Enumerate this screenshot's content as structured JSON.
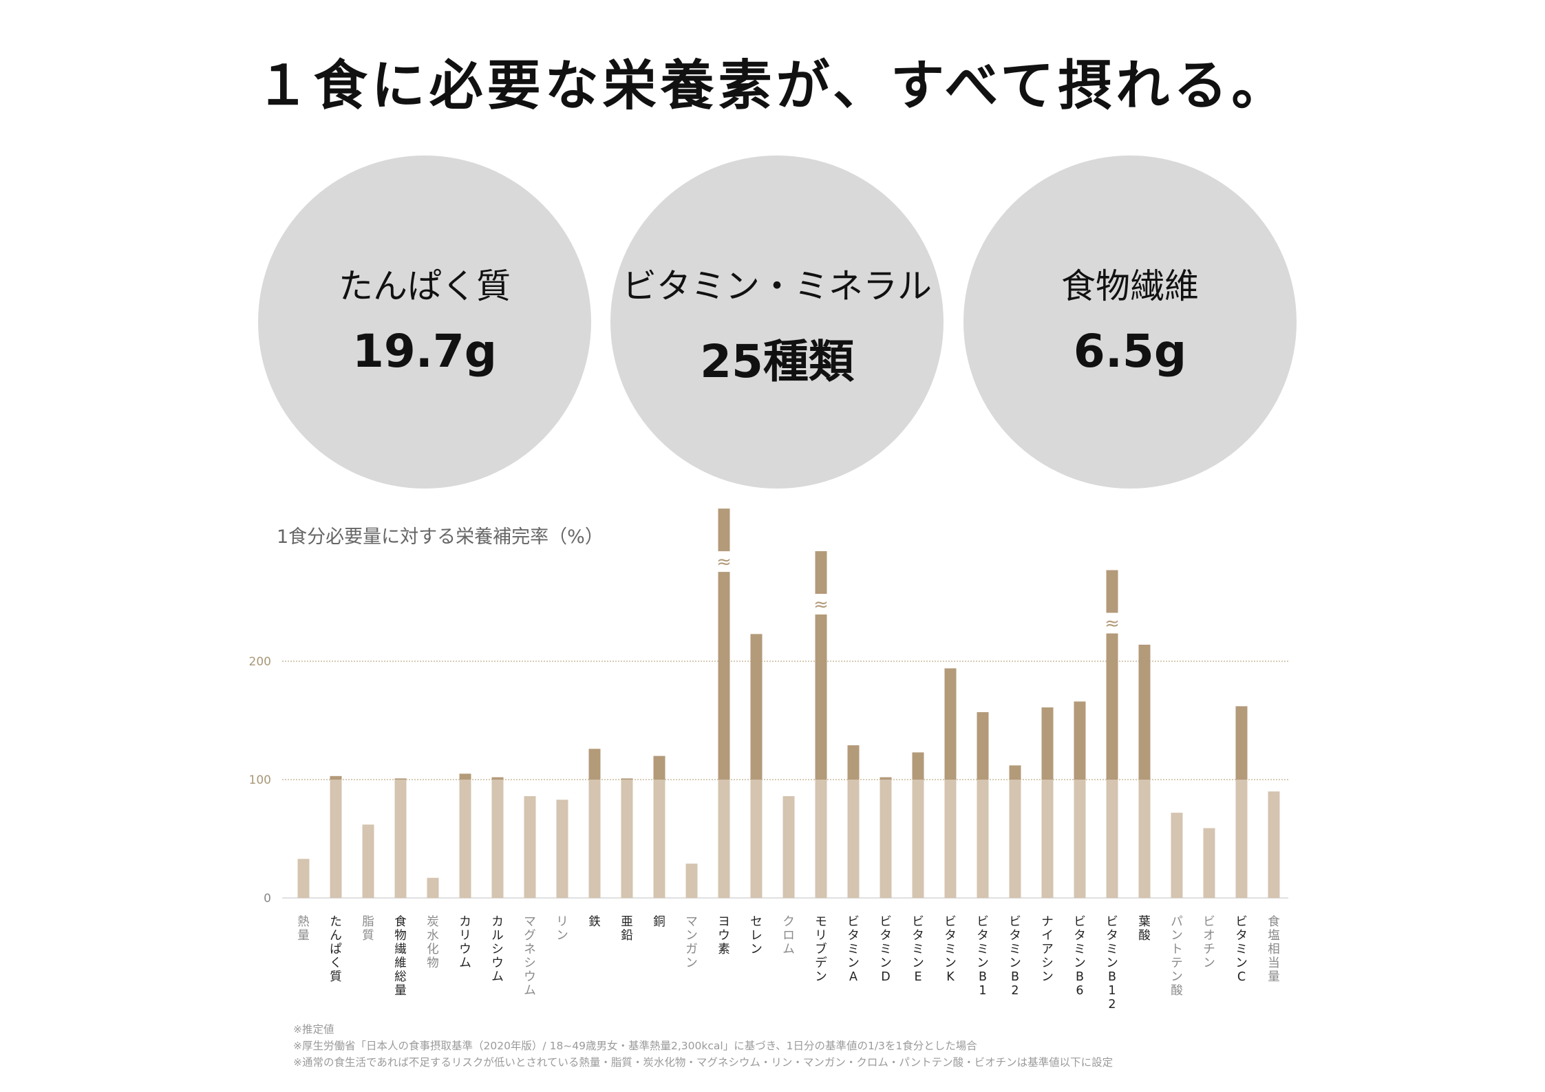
{
  "headline": "１食に必要な栄養素が、すべて摂れる。",
  "stats": [
    {
      "label": "たんぱく質",
      "value": "19.7g"
    },
    {
      "label": "ビタミン・ミネラル",
      "value": "25種類"
    },
    {
      "label": "食物繊維",
      "value": "6.5g"
    }
  ],
  "colors": {
    "circle": "#d9d9d9",
    "bar_base": "#d4c4b0",
    "bar_excess": "#b39a79",
    "reference_line": "#c9b99a",
    "label_bold": "#222222",
    "label_light": "#8a8a8a"
  },
  "chart_data": {
    "type": "bar",
    "title": "1食分必要量に対する栄養補完率（%）",
    "yticks": [
      "0",
      "100",
      "200"
    ],
    "ylim": [
      0,
      330
    ],
    "reference_lines": [
      100,
      200
    ],
    "axis_break_marker": "≈",
    "categories": [
      "熱量",
      "たんぱく質",
      "脂質",
      "食物繊維総量",
      "炭水化物",
      "カリウム",
      "カルシウム",
      "マグネシウム",
      "リン",
      "鉄",
      "亜鉛",
      "銅",
      "マンガン",
      "ヨウ素",
      "セレン",
      "クロム",
      "モリブデン",
      "ビタミンA",
      "ビタミンD",
      "ビタミンE",
      "ビタミンK",
      "ビタミンB1",
      "ビタミンB2",
      "ナイアシン",
      "ビタミンB6",
      "ビタミンB12",
      "葉酸",
      "パントテン酸",
      "ビオチン",
      "ビタミンC",
      "食塩相当量"
    ],
    "values": [
      33,
      103,
      62,
      101,
      17,
      105,
      102,
      86,
      83,
      126,
      101,
      120,
      29,
      329,
      223,
      86,
      293,
      129,
      102,
      123,
      194,
      157,
      112,
      161,
      166,
      277,
      214,
      72,
      59,
      162,
      90
    ],
    "axis_break": [
      false,
      false,
      false,
      false,
      false,
      false,
      false,
      false,
      false,
      false,
      false,
      false,
      false,
      true,
      false,
      false,
      true,
      false,
      false,
      false,
      false,
      false,
      false,
      false,
      false,
      true,
      false,
      false,
      false,
      false,
      false
    ],
    "label_emphasis": [
      false,
      true,
      false,
      true,
      false,
      true,
      true,
      false,
      false,
      true,
      true,
      true,
      false,
      true,
      true,
      false,
      true,
      true,
      true,
      true,
      true,
      true,
      true,
      true,
      true,
      true,
      true,
      false,
      false,
      true,
      false
    ]
  },
  "notes": [
    "※推定値",
    "※厚生労働省「日本人の食事摂取基準（2020年版）/ 18~49歳男女・基準熱量2,300kcal」に基づき、1日分の基準値の1/3を1食分とした場合",
    "※通常の食生活であれば不足するリスクが低いとされている熱量・脂質・炭水化物・マグネシウム・リン・マンガン・クロム・パントテン酸・ビオチンは基準値以下に設定"
  ]
}
